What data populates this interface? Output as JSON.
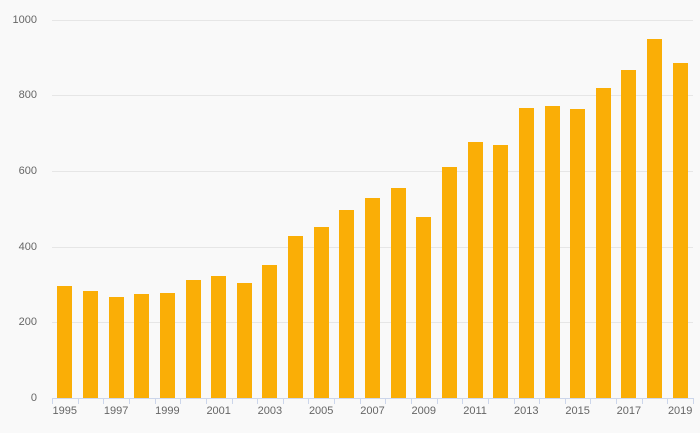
{
  "chart_data": {
    "type": "bar",
    "title": "",
    "xlabel": "",
    "ylabel": "",
    "categories": [
      "1995",
      "1996",
      "1997",
      "1998",
      "1999",
      "2000",
      "2001",
      "2002",
      "2003",
      "2004",
      "2005",
      "2006",
      "2007",
      "2008",
      "2009",
      "2010",
      "2011",
      "2012",
      "2013",
      "2014",
      "2015",
      "2016",
      "2017",
      "2018",
      "2019"
    ],
    "values": [
      297,
      284,
      268,
      274,
      279,
      312,
      323,
      304,
      351,
      428,
      451,
      496,
      528,
      555,
      478,
      611,
      676,
      670,
      766,
      771,
      764,
      819,
      866,
      950,
      886
    ],
    "ylim": [
      0,
      1000
    ],
    "ytick_values": [
      0,
      200,
      400,
      600,
      800,
      1000
    ],
    "ytick_labels": [
      "0",
      "200",
      "400",
      "600",
      "800",
      "1000"
    ],
    "xtick_labels_visible": [
      "1995",
      "1997",
      "1999",
      "2001",
      "2003",
      "2005",
      "2007",
      "2009",
      "2011",
      "2013",
      "2015",
      "2017",
      "2019"
    ],
    "grid": true,
    "legend": false,
    "colors": {
      "bar": "#faae06",
      "background": "#f9f9f9",
      "gridline": "#e6e6e6",
      "axis_line": "#ccd6eb",
      "tick": "#ccd6eb",
      "label": "#666666"
    }
  }
}
